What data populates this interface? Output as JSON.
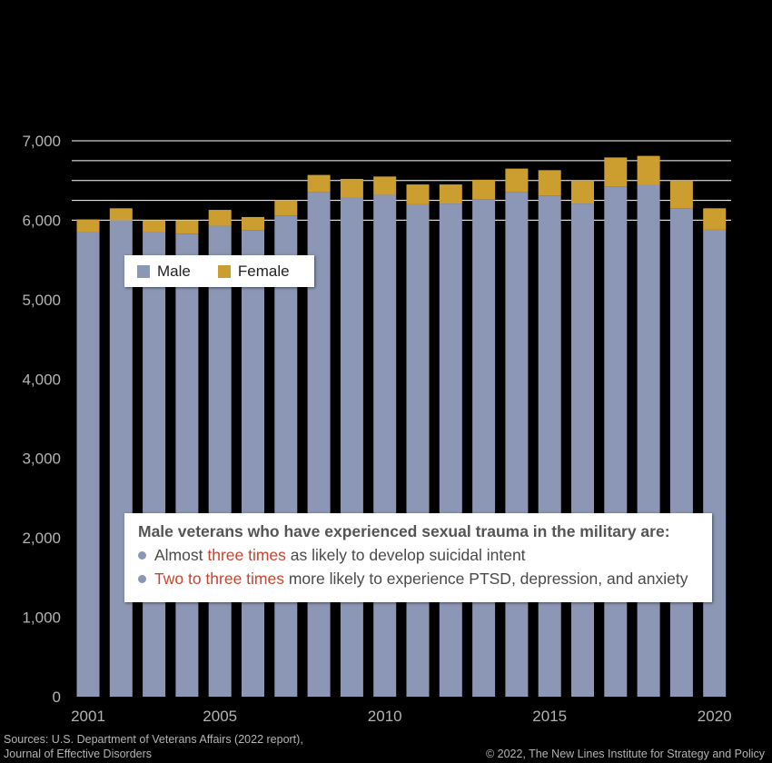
{
  "chart_data": {
    "type": "bar",
    "stacked": true,
    "x": [
      2001,
      2002,
      2003,
      2004,
      2005,
      2006,
      2007,
      2008,
      2009,
      2010,
      2011,
      2012,
      2013,
      2014,
      2015,
      2016,
      2017,
      2018,
      2019,
      2020
    ],
    "x_tick_labels": [
      "2001",
      "2005",
      "2010",
      "2015",
      "2020"
    ],
    "y_tick_labels": [
      "0",
      "1,000",
      "2,000",
      "3,000",
      "4,000",
      "5,000",
      "6,000",
      "7,000"
    ],
    "ylim": [
      0,
      7000
    ],
    "grid": "horizontal, upper region only",
    "legend_position": "upper-left",
    "series": [
      {
        "name": "Male",
        "color": "#8c97b5",
        "values": [
          5850,
          6000,
          5850,
          5830,
          5930,
          5870,
          6060,
          6350,
          6280,
          6320,
          6200,
          6210,
          6260,
          6350,
          6310,
          6210,
          6420,
          6440,
          6150,
          5880
        ]
      },
      {
        "name": "Female",
        "color": "#cc9e30",
        "values": [
          160,
          150,
          150,
          170,
          200,
          170,
          190,
          220,
          240,
          230,
          250,
          240,
          250,
          300,
          320,
          290,
          370,
          370,
          350,
          270
        ]
      }
    ]
  },
  "legend": {
    "male_label": "Male",
    "female_label": "Female"
  },
  "callout": {
    "title": "Male veterans who have experienced sexual trauma in the military are:",
    "line1_pre": "Almost ",
    "line1_highlight": "three times",
    "line1_post": " as likely to develop suicidal intent",
    "line2_highlight": "Two to three times",
    "line2_post": " more likely to experience PTSD, depression, and anxiety"
  },
  "source_line1": "Sources: U.S. Department of Veterans Affairs (2022 report),",
  "source_line2": "Journal of Effective Disorders",
  "copyright": "© 2022, The New Lines Institute for Strategy and Policy",
  "colors": {
    "bullet": "#8c97b5",
    "highlight": "#c8452f",
    "grid": "#ffffff",
    "background": "#000000"
  }
}
